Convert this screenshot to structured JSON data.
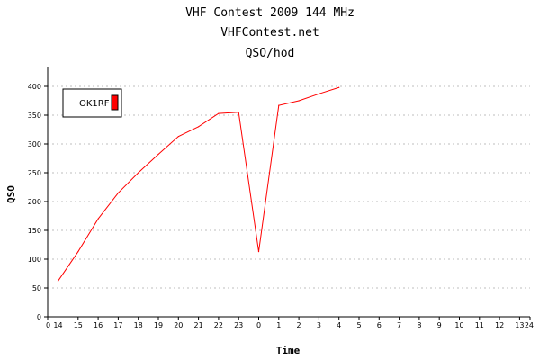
{
  "chart_data": {
    "type": "line",
    "title": "VHF Contest 2009 144 MHz",
    "subtitle": "VHFContest.net",
    "subtitle2": "QSO/hod",
    "xlabel": "Time",
    "ylabel": "QSO",
    "x_ticks": [
      "0",
      "14",
      "15",
      "16",
      "17",
      "18",
      "19",
      "20",
      "21",
      "22",
      "23",
      "0",
      "1",
      "2",
      "3",
      "4",
      "5",
      "6",
      "7",
      "8",
      "9",
      "10",
      "11",
      "12",
      "13",
      "24"
    ],
    "y_ticks": [
      "0",
      "50",
      "100",
      "150",
      "200",
      "250",
      "300",
      "350",
      "400"
    ],
    "ylim": [
      0,
      425
    ],
    "grid": true,
    "legend_position": "top-left",
    "series": [
      {
        "name": "OK1RF",
        "color": "#ff0000",
        "x": [
          "14",
          "15",
          "16",
          "17",
          "18",
          "19",
          "20",
          "21",
          "22",
          "23",
          "0",
          "1",
          "2",
          "3",
          "4"
        ],
        "values": [
          62,
          113,
          170,
          215,
          250,
          282,
          313,
          330,
          353,
          355,
          113,
          367,
          375,
          387,
          398
        ]
      }
    ]
  }
}
